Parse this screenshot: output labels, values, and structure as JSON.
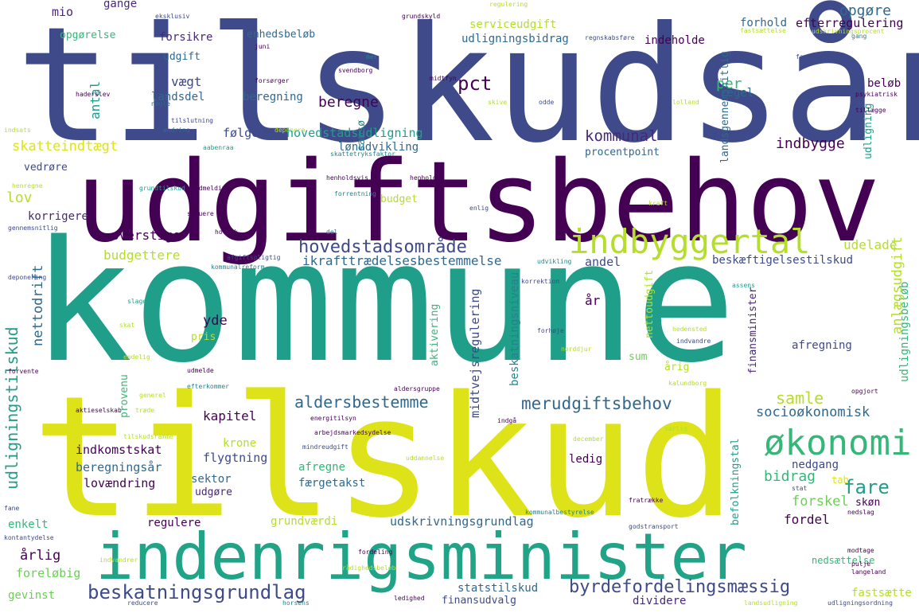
{
  "palette": {
    "background": "#ffffff",
    "dark_purple": "#440154",
    "indigo": "#482878",
    "slate_blue": "#3e4a89",
    "blue": "#31688e",
    "teal": "#26828e",
    "green_teal": "#1f9e89",
    "green": "#35b779",
    "light_green": "#6ece58",
    "yellow_green": "#b5de2b",
    "yellow": "#dde318"
  },
  "words": {
    "tilskudsar": "tilskudsår",
    "udgiftsbehov": "udgiftsbehov",
    "kommune": "kommune",
    "tilskud": "tilskud",
    "indenrigsminister": "indenrigsminister",
    "indbyggertal": "indbyggertal",
    "okonomi": "økonomi",
    "beskatningsgrundlag": "beskatningsgrundlag",
    "byrdefordelingsmaessig": "byrdefordelingsmæssig",
    "merudgiftsbehov": "merudgiftsbehov",
    "hovedstadsomrade": "hovedstadsområde",
    "aldersbestemme": "aldersbestemme",
    "indbygge": "indbygge",
    "kommunal": "kommunal",
    "pct": "pct",
    "beregne": "beregne",
    "fare": "fare",
    "samle": "samle",
    "socio": "socioøkonomisk",
    "bidrag": "bidrag",
    "forskel": "forskel",
    "fordel": "fordel",
    "skatteindtaegt": "skatteindtægt",
    "lov": "lov",
    "overstige": "overstige",
    "budgettere": "budgettere",
    "ikraft": "ikrafttrædelsesbestemmelse",
    "andel": "andel",
    "udelade": "udelade",
    "beskaeftigelsestilskud": "beskæftigelsestilskud",
    "ar": "år",
    "yde": "yde",
    "pris": "pris",
    "afregning": "afregning",
    "arig": "årig",
    "sum": "sum",
    "kapitel": "kapitel",
    "krone": "krone",
    "flygtning": "flygtning",
    "indkomstskat": "indkomstskat",
    "beregningsar": "beregningsår",
    "lovaendring": "lovændring",
    "afregne": "afregne",
    "sektor": "sektor",
    "udgore": "udgøre",
    "faergetakst": "færgetakst",
    "ledig": "ledig",
    "nedgang": "nedgang",
    "skon": "skøn",
    "tab": "tab",
    "regulere": "regulere",
    "grundvaerdi": "grundværdi",
    "udskrivningsgrundlag": "udskrivningsgrundlag",
    "enkelt": "enkelt",
    "arlig": "årlig",
    "forelobig": "foreløbig",
    "gevinst": "gevinst",
    "statstilskud": "statstilskud",
    "finansudvalg": "finansudvalg",
    "dividere": "dividere",
    "fastsaette": "fastsætte",
    "folge": "følge",
    "hovedstadsudligning": "hovedstadsudligning",
    "lonudvikling": "lønudvikling",
    "procentpoint": "procentpoint",
    "budget": "budget",
    "vedrore": "vedrøre",
    "korrigere": "korrigere",
    "vaegt": "vægt",
    "landsdel": "landsdel",
    "udgift": "udgift",
    "forsikre": "forsikre",
    "enhedsbelob": "enhedsbeløb",
    "beregning": "beregning",
    "mio": "mio",
    "gange": "gange",
    "opgorelse": "opgørelse",
    "opgore": "opgøre",
    "efterregulering": "efterregulering",
    "per": "per",
    "belob": "beløb",
    "regel": "regel",
    "forhold": "forhold",
    "indeholde": "indeholde",
    "serviceudgift": "serviceudgift",
    "udligningsbidrag": "udligningsbidrag",
    "nedsaettelse": "nedsættelse",
    "udligningstilskud": "udligningstilskud",
    "nettodrift": "nettodrift",
    "antal": "antal",
    "udligningsbelob": "udligningsbeløb",
    "anlaegsudgift": "anlægsudgift",
    "beskatningsniveau": "beskatningsniveau",
    "midtvejsregulering": "midtvejsregulering",
    "nettoudgift": "nettoudgift",
    "aktivering": "aktivering",
    "finansminister": "finansminister",
    "befolkningstal": "befolkningstal",
    "landsgennemsnitlig": "landsgennemsnitlig",
    "udligning": "udligning",
    "samso": "samsø",
    "provenu": "provenu"
  },
  "small_words": [
    "eksklusiv",
    "grundskyld",
    "regnskabsføre",
    "juni",
    "indsats",
    "mer",
    "svendborg",
    "midtfyn",
    "skive",
    "odde",
    "lolland",
    "faaborg",
    "psykiatrisk",
    "tillægge",
    "forsørger",
    "haderslev",
    "nøgle",
    "tilslutning",
    "ændring",
    "deponere",
    "aabenraa",
    "skattetryksfaktor",
    "henholdsvis",
    "forrentning",
    "henhold",
    "enlig",
    "kraft",
    "grundtilskud",
    "udmelding",
    "holbæk",
    "del",
    "gennemsnitlig",
    "henregne",
    "struere",
    "afgiftspligtig",
    "kommunalreform",
    "udvikling",
    "korrektion",
    "deponering",
    "slagelse",
    "skat",
    "assens",
    "hedensted",
    "forhøje",
    "indvandre",
    "norddjur",
    "forvente",
    "udmelde",
    "aldersgruppe",
    "kalundborg",
    "opgjort",
    "generel",
    "efterkommer",
    "træde",
    "energitilsyn",
    "aktieselskab",
    "arbejdsmarkedsydelse",
    "indgå",
    "mindreudgift",
    "december",
    "uddannelse",
    "særlig",
    "stat",
    "fratrække",
    "nedslag",
    "fane",
    "kontantydelse",
    "indvandrer",
    "kommunalbestyrelse",
    "godstransport",
    "fordeling",
    "rådighedsbeløb",
    "modtage",
    "pulje",
    "langeland",
    "ledighed",
    "horsens",
    "reducere",
    "landsudligning",
    "udligningsordning",
    "regulering",
    "fastsættelse",
    "udskrivningsprocent",
    "gang",
    "endelig",
    "tilskudsramme",
    "færgerute",
    "medfinansieringen"
  ]
}
